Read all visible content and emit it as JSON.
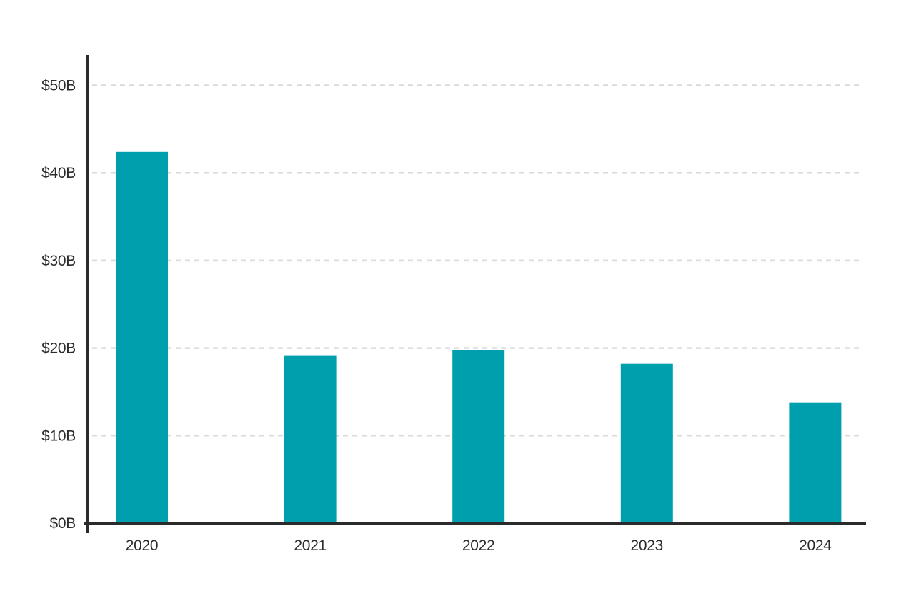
{
  "chart_data": {
    "type": "bar",
    "title": "",
    "xlabel": "",
    "ylabel": "",
    "categories": [
      "2020",
      "2021",
      "2022",
      "2023",
      "2024"
    ],
    "values": [
      42.4,
      19.1,
      19.8,
      18.2,
      13.8
    ],
    "unit_prefix": "$",
    "unit_suffix": "B",
    "ylim": [
      0,
      54
    ],
    "y_ticks": [
      0,
      10,
      20,
      30,
      40,
      50
    ],
    "y_tick_labels": [
      "$0B",
      "$10B",
      "$20B",
      "$30B",
      "$40B",
      "$50B"
    ],
    "grid": "horizontal-dashed",
    "legend_position": "none",
    "colors": {
      "bar": "#009FAE",
      "axis": "#2B2B2B",
      "gridline": "#D9D9D9",
      "label": "#2B2B2B",
      "background": "#FFFFFF"
    }
  }
}
